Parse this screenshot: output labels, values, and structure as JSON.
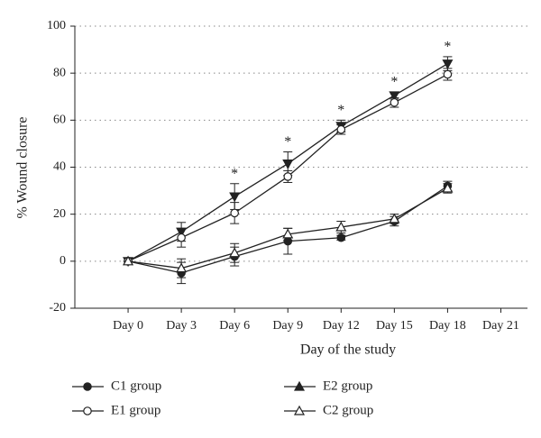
{
  "chart_data": {
    "type": "line",
    "x_label": "Day of the study",
    "y_label": "% Wound closure",
    "categories": [
      "Day 0",
      "Day 3",
      "Day 6",
      "Day 9",
      "Day 12",
      "Day 15",
      "Day 18",
      "Day 21"
    ],
    "ylim": [
      -20,
      100
    ],
    "yticks": [
      -20,
      0,
      20,
      40,
      60,
      80,
      100
    ],
    "grid": true,
    "series": [
      {
        "name": "C1 group",
        "color": "#222222",
        "marker": "circle-filled",
        "values": [
          0,
          -5,
          2,
          8.5,
          10,
          17,
          32,
          null
        ],
        "errors": [
          0,
          4.5,
          4,
          5.5,
          1,
          2,
          2,
          null
        ]
      },
      {
        "name": "E2 group",
        "color": "#222222",
        "marker": "triangle-filled",
        "values": [
          0,
          12.5,
          27.5,
          41.5,
          57.5,
          70.5,
          84,
          null
        ],
        "errors": [
          0,
          4,
          5.5,
          5,
          2.5,
          1.5,
          3,
          null
        ]
      },
      {
        "name": "E1 group",
        "color": "#222222",
        "marker": "circle-open",
        "values": [
          0,
          10,
          20.5,
          36,
          56,
          67.5,
          79.5,
          null
        ],
        "errors": [
          0,
          4,
          4.5,
          2.5,
          2,
          2,
          2.5,
          null
        ]
      },
      {
        "name": "C2 group",
        "color": "#222222",
        "marker": "triangle-open",
        "values": [
          0,
          -3,
          3.5,
          11.5,
          14.5,
          18,
          31,
          null
        ],
        "errors": [
          0,
          4,
          4,
          2.5,
          2.5,
          2,
          2,
          null
        ]
      }
    ],
    "significance": {
      "text": "*",
      "series": "E2 group",
      "categories": [
        "Day 6",
        "Day 9",
        "Day 12",
        "Day 15",
        "Day 18"
      ]
    }
  }
}
